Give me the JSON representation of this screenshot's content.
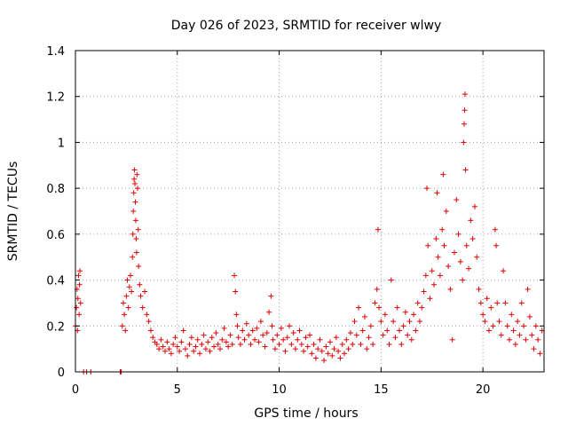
{
  "chart_data": {
    "type": "scatter",
    "title": "Day 026 of 2023, SRMTID for receiver wlwy",
    "xlabel": "GPS time / hours",
    "ylabel": "SRMTID / TECUs",
    "xlim": [
      0,
      23
    ],
    "ylim": [
      0,
      1.4
    ],
    "xticks": [
      0,
      5,
      10,
      15,
      20
    ],
    "xtick_labels": [
      "0",
      "5",
      "10",
      "15",
      "20"
    ],
    "yticks": [
      0,
      0.2,
      0.4,
      0.6,
      0.8,
      1.0,
      1.2,
      1.4
    ],
    "ytick_labels": [
      "0",
      "0.2",
      "0.4",
      "0.6",
      "0.8",
      "1",
      "1.2",
      "1.4"
    ],
    "grid": true,
    "marker": "plus",
    "color": "#e00000",
    "series": [
      {
        "name": "SRMTID",
        "points": [
          [
            0.0,
            0.2
          ],
          [
            0.05,
            0.28
          ],
          [
            0.08,
            0.36
          ],
          [
            0.1,
            0.18
          ],
          [
            0.12,
            0.32
          ],
          [
            0.15,
            0.42
          ],
          [
            0.18,
            0.25
          ],
          [
            0.2,
            0.38
          ],
          [
            0.22,
            0.44
          ],
          [
            0.25,
            0.3
          ],
          [
            0.4,
            0.0
          ],
          [
            0.55,
            0.0
          ],
          [
            0.75,
            0.0
          ],
          [
            2.2,
            0.0
          ],
          [
            2.25,
            0.0
          ],
          [
            2.3,
            0.2
          ],
          [
            2.35,
            0.3
          ],
          [
            2.4,
            0.25
          ],
          [
            2.45,
            0.18
          ],
          [
            2.5,
            0.33
          ],
          [
            2.55,
            0.4
          ],
          [
            2.6,
            0.28
          ],
          [
            2.65,
            0.37
          ],
          [
            2.7,
            0.42
          ],
          [
            2.75,
            0.35
          ],
          [
            2.8,
            0.5
          ],
          [
            2.82,
            0.6
          ],
          [
            2.84,
            0.7
          ],
          [
            2.86,
            0.78
          ],
          [
            2.88,
            0.84
          ],
          [
            2.9,
            0.88
          ],
          [
            2.92,
            0.82
          ],
          [
            2.94,
            0.74
          ],
          [
            2.96,
            0.66
          ],
          [
            2.98,
            0.58
          ],
          [
            3.0,
            0.52
          ],
          [
            3.02,
            0.86
          ],
          [
            3.05,
            0.8
          ],
          [
            3.08,
            0.62
          ],
          [
            3.1,
            0.46
          ],
          [
            3.15,
            0.38
          ],
          [
            3.2,
            0.33
          ],
          [
            3.3,
            0.28
          ],
          [
            3.4,
            0.35
          ],
          [
            3.5,
            0.25
          ],
          [
            3.6,
            0.22
          ],
          [
            3.7,
            0.18
          ],
          [
            3.8,
            0.15
          ],
          [
            3.9,
            0.13
          ],
          [
            4.0,
            0.12
          ],
          [
            4.1,
            0.1
          ],
          [
            4.2,
            0.14
          ],
          [
            4.3,
            0.11
          ],
          [
            4.4,
            0.09
          ],
          [
            4.5,
            0.13
          ],
          [
            4.6,
            0.1
          ],
          [
            4.7,
            0.08
          ],
          [
            4.8,
            0.12
          ],
          [
            4.9,
            0.15
          ],
          [
            5.0,
            0.11
          ],
          [
            5.1,
            0.09
          ],
          [
            5.2,
            0.13
          ],
          [
            5.3,
            0.18
          ],
          [
            5.4,
            0.1
          ],
          [
            5.5,
            0.07
          ],
          [
            5.6,
            0.12
          ],
          [
            5.7,
            0.15
          ],
          [
            5.8,
            0.09
          ],
          [
            5.9,
            0.11
          ],
          [
            6.0,
            0.14
          ],
          [
            6.1,
            0.08
          ],
          [
            6.2,
            0.12
          ],
          [
            6.3,
            0.16
          ],
          [
            6.4,
            0.1
          ],
          [
            6.5,
            0.13
          ],
          [
            6.6,
            0.09
          ],
          [
            6.7,
            0.15
          ],
          [
            6.8,
            0.11
          ],
          [
            6.9,
            0.17
          ],
          [
            7.0,
            0.12
          ],
          [
            7.1,
            0.1
          ],
          [
            7.2,
            0.14
          ],
          [
            7.3,
            0.19
          ],
          [
            7.4,
            0.13
          ],
          [
            7.5,
            0.11
          ],
          [
            7.6,
            0.16
          ],
          [
            7.7,
            0.12
          ],
          [
            7.8,
            0.42
          ],
          [
            7.85,
            0.35
          ],
          [
            7.9,
            0.25
          ],
          [
            7.95,
            0.2
          ],
          [
            8.0,
            0.15
          ],
          [
            8.1,
            0.12
          ],
          [
            8.2,
            0.18
          ],
          [
            8.3,
            0.14
          ],
          [
            8.4,
            0.21
          ],
          [
            8.5,
            0.16
          ],
          [
            8.6,
            0.12
          ],
          [
            8.7,
            0.18
          ],
          [
            8.8,
            0.14
          ],
          [
            8.9,
            0.19
          ],
          [
            9.0,
            0.13
          ],
          [
            9.1,
            0.22
          ],
          [
            9.2,
            0.16
          ],
          [
            9.3,
            0.11
          ],
          [
            9.4,
            0.17
          ],
          [
            9.5,
            0.26
          ],
          [
            9.6,
            0.33
          ],
          [
            9.65,
            0.2
          ],
          [
            9.7,
            0.14
          ],
          [
            9.8,
            0.1
          ],
          [
            9.9,
            0.16
          ],
          [
            10.0,
            0.12
          ],
          [
            10.1,
            0.19
          ],
          [
            10.2,
            0.14
          ],
          [
            10.3,
            0.09
          ],
          [
            10.4,
            0.15
          ],
          [
            10.5,
            0.2
          ],
          [
            10.6,
            0.12
          ],
          [
            10.7,
            0.17
          ],
          [
            10.8,
            0.1
          ],
          [
            10.9,
            0.14
          ],
          [
            11.0,
            0.18
          ],
          [
            11.1,
            0.12
          ],
          [
            11.2,
            0.09
          ],
          [
            11.3,
            0.15
          ],
          [
            11.4,
            0.11
          ],
          [
            11.5,
            0.16
          ],
          [
            11.6,
            0.08
          ],
          [
            11.7,
            0.12
          ],
          [
            11.8,
            0.06
          ],
          [
            11.9,
            0.1
          ],
          [
            12.0,
            0.14
          ],
          [
            12.1,
            0.09
          ],
          [
            12.2,
            0.05
          ],
          [
            12.3,
            0.11
          ],
          [
            12.4,
            0.08
          ],
          [
            12.5,
            0.13
          ],
          [
            12.6,
            0.07
          ],
          [
            12.7,
            0.1
          ],
          [
            12.8,
            0.15
          ],
          [
            12.9,
            0.09
          ],
          [
            13.0,
            0.06
          ],
          [
            13.1,
            0.12
          ],
          [
            13.2,
            0.08
          ],
          [
            13.3,
            0.14
          ],
          [
            13.4,
            0.1
          ],
          [
            13.5,
            0.17
          ],
          [
            13.6,
            0.12
          ],
          [
            13.7,
            0.22
          ],
          [
            13.8,
            0.16
          ],
          [
            13.9,
            0.28
          ],
          [
            14.0,
            0.12
          ],
          [
            14.1,
            0.18
          ],
          [
            14.2,
            0.24
          ],
          [
            14.3,
            0.1
          ],
          [
            14.4,
            0.15
          ],
          [
            14.5,
            0.2
          ],
          [
            14.6,
            0.12
          ],
          [
            14.7,
            0.3
          ],
          [
            14.8,
            0.36
          ],
          [
            14.85,
            0.62
          ],
          [
            14.9,
            0.28
          ],
          [
            15.0,
            0.22
          ],
          [
            15.1,
            0.16
          ],
          [
            15.2,
            0.25
          ],
          [
            15.3,
            0.18
          ],
          [
            15.4,
            0.12
          ],
          [
            15.5,
            0.4
          ],
          [
            15.6,
            0.22
          ],
          [
            15.7,
            0.15
          ],
          [
            15.8,
            0.28
          ],
          [
            15.9,
            0.18
          ],
          [
            16.0,
            0.12
          ],
          [
            16.1,
            0.2
          ],
          [
            16.2,
            0.26
          ],
          [
            16.3,
            0.16
          ],
          [
            16.4,
            0.22
          ],
          [
            16.5,
            0.14
          ],
          [
            16.6,
            0.25
          ],
          [
            16.7,
            0.18
          ],
          [
            16.8,
            0.3
          ],
          [
            16.9,
            0.22
          ],
          [
            17.0,
            0.28
          ],
          [
            17.1,
            0.35
          ],
          [
            17.2,
            0.42
          ],
          [
            17.25,
            0.8
          ],
          [
            17.3,
            0.55
          ],
          [
            17.4,
            0.32
          ],
          [
            17.5,
            0.44
          ],
          [
            17.6,
            0.38
          ],
          [
            17.7,
            0.58
          ],
          [
            17.75,
            0.78
          ],
          [
            17.8,
            0.5
          ],
          [
            17.9,
            0.42
          ],
          [
            18.0,
            0.62
          ],
          [
            18.05,
            0.86
          ],
          [
            18.1,
            0.55
          ],
          [
            18.2,
            0.7
          ],
          [
            18.3,
            0.46
          ],
          [
            18.4,
            0.36
          ],
          [
            18.5,
            0.14
          ],
          [
            18.6,
            0.52
          ],
          [
            18.7,
            0.75
          ],
          [
            18.8,
            0.6
          ],
          [
            18.9,
            0.48
          ],
          [
            19.0,
            0.4
          ],
          [
            19.05,
            1.0
          ],
          [
            19.08,
            1.08
          ],
          [
            19.1,
            1.14
          ],
          [
            19.12,
            1.21
          ],
          [
            19.15,
            0.88
          ],
          [
            19.2,
            0.55
          ],
          [
            19.3,
            0.45
          ],
          [
            19.4,
            0.66
          ],
          [
            19.5,
            0.58
          ],
          [
            19.6,
            0.72
          ],
          [
            19.7,
            0.5
          ],
          [
            19.8,
            0.36
          ],
          [
            19.9,
            0.3
          ],
          [
            20.0,
            0.25
          ],
          [
            20.1,
            0.22
          ],
          [
            20.2,
            0.32
          ],
          [
            20.3,
            0.18
          ],
          [
            20.4,
            0.28
          ],
          [
            20.5,
            0.2
          ],
          [
            20.6,
            0.62
          ],
          [
            20.65,
            0.55
          ],
          [
            20.7,
            0.3
          ],
          [
            20.8,
            0.22
          ],
          [
            20.9,
            0.16
          ],
          [
            21.0,
            0.44
          ],
          [
            21.1,
            0.3
          ],
          [
            21.2,
            0.2
          ],
          [
            21.3,
            0.14
          ],
          [
            21.4,
            0.25
          ],
          [
            21.5,
            0.18
          ],
          [
            21.6,
            0.12
          ],
          [
            21.7,
            0.22
          ],
          [
            21.8,
            0.16
          ],
          [
            21.9,
            0.3
          ],
          [
            22.0,
            0.2
          ],
          [
            22.1,
            0.14
          ],
          [
            22.2,
            0.36
          ],
          [
            22.3,
            0.24
          ],
          [
            22.4,
            0.16
          ],
          [
            22.5,
            0.1
          ],
          [
            22.6,
            0.2
          ],
          [
            22.7,
            0.14
          ],
          [
            22.8,
            0.08
          ],
          [
            22.9,
            0.18
          ]
        ]
      }
    ]
  }
}
